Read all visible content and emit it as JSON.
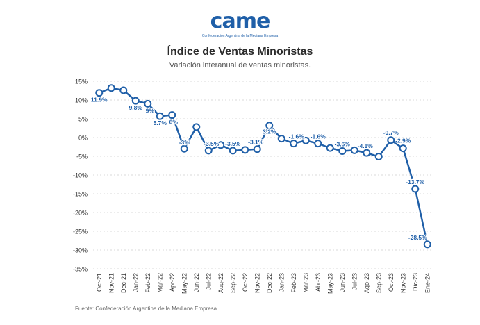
{
  "header": {
    "logo_text": "came",
    "logo_subtext": "Confederación Argentina de la Mediana Empresa",
    "title": "Índice de Ventas Minoristas",
    "subtitle": "Variación interanual de ventas minoristas."
  },
  "footer": {
    "source": "Fuente: Confederación Argentina de la Mediana Empresa"
  },
  "colors": {
    "line": "#1f5fa8",
    "label": "#1f5fa8",
    "grid": "#d9d9d9"
  },
  "chart_data": {
    "type": "line",
    "title": "Índice de Ventas Minoristas",
    "subtitle": "Variación interanual de ventas minoristas.",
    "xlabel": "",
    "ylabel": "",
    "ylim": [
      -35,
      15
    ],
    "yticks": [
      15,
      10,
      5,
      0,
      -5,
      -10,
      -15,
      -20,
      -25,
      -30,
      -35
    ],
    "ytick_labels": [
      "15%",
      "10%",
      "5%",
      "0%",
      "-5%",
      "-10%",
      "-15%",
      "-20%",
      "-25%",
      "-30%",
      "-35%"
    ],
    "grid": true,
    "categories": [
      "Oct-21",
      "Nov-21",
      "Dec-21",
      "Jan-22",
      "Feb-22",
      "Mar-22",
      "Apr-22",
      "May-22",
      "Jun-22",
      "Jul-22",
      "Aug-22",
      "Sep-22",
      "Oct-22",
      "Nov-22",
      "Dec-22",
      "Jan-23",
      "Feb-23",
      "Mar-23",
      "Abr-23",
      "May-23",
      "Jun-23",
      "Jul-23",
      "Ago-23",
      "Sep-23",
      "Oct-23",
      "Nov-23",
      "Dic-23",
      "Ene-24"
    ],
    "values": [
      11.9,
      13.2,
      12.6,
      9.8,
      9.0,
      5.7,
      6.0,
      -3.0,
      2.8,
      -3.5,
      -2.0,
      -3.5,
      -3.3,
      -3.1,
      3.2,
      -0.3,
      -1.6,
      -0.8,
      -1.6,
      -2.8,
      -3.6,
      -3.4,
      -4.1,
      -5.1,
      -0.7,
      -2.9,
      -13.7,
      -28.5
    ],
    "data_labels": [
      {
        "index": 0,
        "text": "11.9%"
      },
      {
        "index": 3,
        "text": "9.8%"
      },
      {
        "index": 4,
        "text": "9%"
      },
      {
        "index": 5,
        "text": "5.7%"
      },
      {
        "index": 6,
        "text": "6%"
      },
      {
        "index": 7,
        "text": "-3%"
      },
      {
        "index": 9,
        "text": "-3.5%"
      },
      {
        "index": 11,
        "text": "-3.5%"
      },
      {
        "index": 13,
        "text": "-3.1%"
      },
      {
        "index": 14,
        "text": "3.2%"
      },
      {
        "index": 16,
        "text": "-1.6%"
      },
      {
        "index": 18,
        "text": "-1.6%"
      },
      {
        "index": 20,
        "text": "-3.6%"
      },
      {
        "index": 22,
        "text": "-4.1%"
      },
      {
        "index": 24,
        "text": "-0.7%"
      },
      {
        "index": 25,
        "text": "-2.9%"
      },
      {
        "index": 26,
        "text": "-13.7%"
      },
      {
        "index": 27,
        "text": "-28.5%"
      }
    ]
  }
}
